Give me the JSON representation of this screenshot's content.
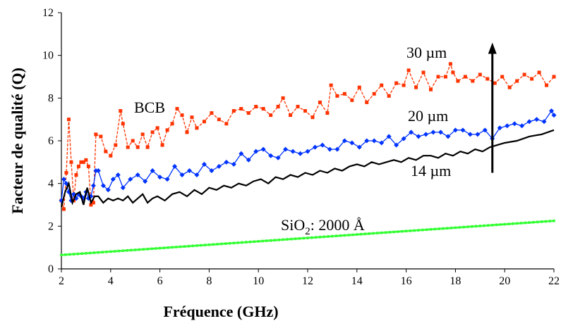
{
  "chart_data": {
    "type": "line",
    "xlabel": "Fréquence (GHz)",
    "ylabel": "Facteur de qualité (Q)",
    "xlim": [
      2,
      22
    ],
    "ylim": [
      0,
      12
    ],
    "xticks": [
      2,
      4,
      6,
      8,
      10,
      12,
      14,
      16,
      18,
      20,
      22
    ],
    "yticks": [
      0,
      2,
      4,
      6,
      8,
      10,
      12
    ],
    "grid": false,
    "series": [
      {
        "name": "30 µm",
        "color": "#ff3300",
        "style": "dashed-square",
        "x": [
          2,
          2.1,
          2.2,
          2.3,
          2.4,
          2.5,
          2.6,
          2.7,
          2.8,
          2.9,
          3,
          3.1,
          3.2,
          3.3,
          3.4,
          3.6,
          3.8,
          4,
          4.2,
          4.4,
          4.5,
          4.7,
          4.9,
          5.1,
          5.3,
          5.5,
          5.7,
          5.9,
          6.1,
          6.3,
          6.5,
          6.7,
          6.9,
          7.1,
          7.3,
          7.5,
          7.8,
          8.1,
          8.4,
          8.7,
          9,
          9.3,
          9.6,
          9.9,
          10.2,
          10.5,
          10.8,
          11,
          11.3,
          11.6,
          11.9,
          12.2,
          12.5,
          12.8,
          12.95,
          13.2,
          13.5,
          13.8,
          14.1,
          14.4,
          14.7,
          15,
          15.3,
          15.6,
          15.9,
          16.1,
          16.4,
          16.7,
          17,
          17.3,
          17.6,
          17.8,
          17.9,
          18.1,
          18.4,
          18.7,
          19,
          19.3,
          19.6,
          19.9,
          20.2,
          20.5,
          20.8,
          21.1,
          21.4,
          21.7,
          22
        ],
        "y": [
          3.2,
          2.8,
          4.5,
          7.0,
          5.0,
          3.2,
          4.4,
          4.8,
          5.0,
          5.0,
          5.1,
          4.8,
          3.0,
          3.1,
          6.3,
          6.2,
          5.5,
          5.3,
          5.8,
          7.4,
          6.8,
          5.7,
          6.0,
          5.7,
          6.3,
          5.7,
          6.4,
          6.6,
          5.8,
          6.5,
          6.8,
          7.5,
          7.2,
          6.4,
          7.1,
          6.6,
          6.9,
          7.3,
          7.0,
          6.8,
          7.4,
          7.5,
          7.3,
          7.6,
          7.5,
          7.2,
          7.6,
          8.0,
          7.2,
          7.6,
          7.4,
          7.1,
          7.8,
          7.3,
          8.6,
          8.1,
          8.2,
          7.9,
          8.5,
          7.8,
          8.2,
          8.6,
          8.1,
          8.7,
          8.6,
          9.3,
          8.5,
          9.2,
          8.4,
          9.0,
          9.0,
          9.6,
          9.2,
          8.8,
          9.0,
          8.8,
          9.1,
          8.9,
          8.7,
          9.0,
          8.5,
          8.8,
          9.1,
          8.9,
          9.2,
          8.6,
          9.0
        ]
      },
      {
        "name": "20 µm",
        "color": "#0033ff",
        "style": "diamond",
        "x": [
          2,
          2.1,
          2.2,
          2.3,
          2.4,
          2.5,
          2.6,
          2.7,
          2.8,
          2.9,
          3,
          3.1,
          3.2,
          3.3,
          3.4,
          3.5,
          3.7,
          3.9,
          4.1,
          4.3,
          4.5,
          4.8,
          5.1,
          5.4,
          5.7,
          6,
          6.3,
          6.6,
          6.9,
          7.2,
          7.5,
          7.8,
          8.1,
          8.4,
          8.7,
          9,
          9.3,
          9.6,
          9.9,
          10.2,
          10.5,
          10.8,
          11.1,
          11.4,
          11.7,
          12,
          12.3,
          12.6,
          12.9,
          13.2,
          13.5,
          13.8,
          14.1,
          14.4,
          14.7,
          15,
          15.3,
          15.6,
          15.9,
          16.2,
          16.5,
          16.8,
          17.1,
          17.4,
          17.7,
          18,
          18.3,
          18.6,
          18.9,
          19.2,
          19.5,
          19.8,
          20.1,
          20.4,
          20.7,
          21,
          21.3,
          21.6,
          21.9,
          22
        ],
        "y": [
          3.2,
          4.2,
          4.0,
          3.6,
          3.2,
          3.5,
          3.3,
          3.5,
          3.4,
          3.3,
          3.6,
          3.3,
          3.4,
          3.9,
          4.6,
          4.6,
          3.9,
          3.7,
          4.2,
          4.4,
          3.8,
          4.2,
          4.4,
          4.1,
          4.6,
          4.3,
          4.2,
          4.8,
          4.4,
          4.6,
          4.4,
          4.9,
          4.6,
          4.8,
          5.0,
          4.9,
          5.4,
          5.1,
          5.5,
          5.6,
          5.3,
          5.2,
          5.6,
          5.5,
          5.4,
          5.5,
          5.7,
          5.8,
          5.6,
          5.6,
          6.0,
          5.9,
          5.7,
          6.0,
          6.0,
          5.9,
          6.2,
          5.8,
          6.1,
          6.4,
          6.2,
          6.3,
          6.4,
          6.4,
          6.2,
          6.5,
          6.5,
          6.3,
          6.3,
          6.5,
          6.1,
          6.6,
          6.7,
          6.8,
          6.7,
          6.9,
          7.0,
          6.9,
          7.4,
          7.2
        ]
      },
      {
        "name": "14 µm",
        "color": "#000000",
        "style": "solid",
        "x": [
          2,
          2.15,
          2.3,
          2.45,
          2.6,
          2.75,
          2.9,
          3.05,
          3.2,
          3.35,
          3.5,
          3.7,
          3.9,
          4.1,
          4.3,
          4.5,
          4.7,
          4.9,
          5.1,
          5.3,
          5.5,
          5.7,
          5.9,
          6.2,
          6.5,
          6.8,
          7.1,
          7.4,
          7.7,
          8,
          8.3,
          8.6,
          8.9,
          9.2,
          9.5,
          9.8,
          10.1,
          10.4,
          10.7,
          11,
          11.3,
          11.6,
          11.9,
          12.2,
          12.5,
          12.8,
          13.1,
          13.4,
          13.7,
          14,
          14.3,
          14.6,
          14.9,
          15.2,
          15.5,
          15.8,
          16.1,
          16.4,
          16.7,
          17,
          17.3,
          17.6,
          17.9,
          18.2,
          18.5,
          18.8,
          19.1,
          19.4,
          19.7,
          20,
          20.5,
          21,
          21.5,
          22
        ],
        "y": [
          2.9,
          3.6,
          4.0,
          3.1,
          3.5,
          3.6,
          3.0,
          3.8,
          3.1,
          3.4,
          3.4,
          3.1,
          3.3,
          3.2,
          3.3,
          3.2,
          3.4,
          3.1,
          3.3,
          3.5,
          3.1,
          3.3,
          3.4,
          3.2,
          3.5,
          3.6,
          3.4,
          3.7,
          3.5,
          3.8,
          3.7,
          3.9,
          3.8,
          4.0,
          3.9,
          4.1,
          4.2,
          4.0,
          4.3,
          4.2,
          4.4,
          4.3,
          4.5,
          4.4,
          4.6,
          4.5,
          4.7,
          4.6,
          4.8,
          4.9,
          4.8,
          5.0,
          4.9,
          5.0,
          5.1,
          5.0,
          5.2,
          5.1,
          5.3,
          5.3,
          5.2,
          5.4,
          5.3,
          5.5,
          5.4,
          5.6,
          5.5,
          5.7,
          5.8,
          5.9,
          6.0,
          6.2,
          6.3,
          6.5
        ]
      },
      {
        "name": "SiO2: 2000 Å",
        "color": "#33ff33",
        "style": "dotted-marker",
        "x": [
          2,
          22
        ],
        "y": [
          0.65,
          2.25
        ]
      }
    ],
    "annotations": [
      {
        "id": "bcb",
        "text": "BCB"
      },
      {
        "id": "30um",
        "text": "30 µm"
      },
      {
        "id": "20um",
        "text": "20 µm"
      },
      {
        "id": "14um",
        "text": "14 µm"
      },
      {
        "id": "sio2",
        "text": "SiO",
        "sub": "2",
        "tail": ": 2000 Å"
      }
    ],
    "arrow": {
      "x": 19.5,
      "y_from": 4.5,
      "y_to": 10.6,
      "direction": "up"
    }
  }
}
